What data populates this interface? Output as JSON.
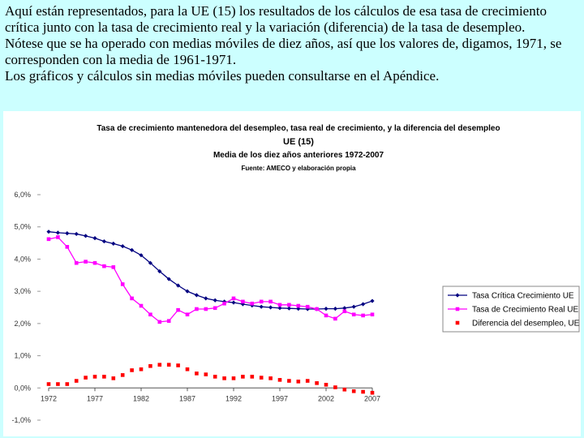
{
  "intro": {
    "p1": "Aquí están representados, para la UE (15) los resultados de los cálculos de esa tasa de crecimiento crítica junto con la tasa de crecimiento real y la variación (diferencia) de la tasa de desempleo.",
    "p2": "Nótese que se ha operado con medias móviles de diez años, así que los valores de, digamos, 1971, se corresponden con la media de 1961-1971.",
    "p3": "Los gráficos y cálculos sin medias móviles pueden consultarse en el Apéndice."
  },
  "colors": {
    "critical": "#000080",
    "real": "#ff00ff",
    "diff": "#ff0000",
    "background": "#ccffff"
  },
  "chart_data": {
    "type": "line",
    "title": "Tasa de crecimiento mantenedora del desempleo, tasa real de crecimiento, y la diferencia del desempleo",
    "subtitle1": "UE (15)",
    "subtitle2": "Media de los diez años anteriores 1972-2007",
    "source": "Fuente: AMECO y elaboración propia",
    "xlabel": "",
    "ylabel": "",
    "xlim": [
      1972,
      2007
    ],
    "ylim": [
      -1.0,
      6.0
    ],
    "y_ticks": [
      "-1,0%",
      "0,0%",
      "1,0%",
      "2,0%",
      "3,0%",
      "4,0%",
      "5,0%",
      "6,0%"
    ],
    "x_ticks": [
      "1972",
      "1977",
      "1982",
      "1987",
      "1992",
      "1997",
      "2002",
      "2007"
    ],
    "grid": false,
    "legend_position": "right",
    "x": [
      1972,
      1973,
      1974,
      1975,
      1976,
      1977,
      1978,
      1979,
      1980,
      1981,
      1982,
      1983,
      1984,
      1985,
      1986,
      1987,
      1988,
      1989,
      1990,
      1991,
      1992,
      1993,
      1994,
      1995,
      1996,
      1997,
      1998,
      1999,
      2000,
      2001,
      2002,
      2003,
      2004,
      2005,
      2006,
      2007
    ],
    "series": [
      {
        "name": "Tasa Crítica Crecimiento UE",
        "marker": "diamond",
        "values": [
          4.85,
          4.82,
          4.8,
          4.78,
          4.72,
          4.65,
          4.55,
          4.48,
          4.4,
          4.28,
          4.12,
          3.88,
          3.62,
          3.38,
          3.18,
          3.0,
          2.88,
          2.78,
          2.72,
          2.68,
          2.65,
          2.6,
          2.56,
          2.52,
          2.5,
          2.48,
          2.47,
          2.46,
          2.45,
          2.45,
          2.46,
          2.46,
          2.48,
          2.52,
          2.6,
          2.7
        ]
      },
      {
        "name": "Tasa de Crecimiento Real UE",
        "marker": "square",
        "values": [
          4.62,
          4.68,
          4.38,
          3.88,
          3.92,
          3.88,
          3.78,
          3.75,
          3.22,
          2.78,
          2.55,
          2.28,
          2.05,
          2.08,
          2.42,
          2.28,
          2.45,
          2.45,
          2.48,
          2.62,
          2.78,
          2.68,
          2.62,
          2.68,
          2.68,
          2.58,
          2.58,
          2.55,
          2.52,
          2.45,
          2.25,
          2.15,
          2.38,
          2.28,
          2.25,
          2.28
        ]
      },
      {
        "name": "Diferencia del desempleo, UE",
        "marker": "square-filled",
        "line": false,
        "values": [
          0.12,
          0.12,
          0.12,
          0.22,
          0.32,
          0.35,
          0.35,
          0.3,
          0.4,
          0.55,
          0.58,
          0.68,
          0.72,
          0.72,
          0.7,
          0.58,
          0.45,
          0.42,
          0.35,
          0.3,
          0.3,
          0.35,
          0.35,
          0.32,
          0.3,
          0.25,
          0.22,
          0.2,
          0.22,
          0.15,
          0.1,
          0.02,
          -0.05,
          -0.1,
          -0.12,
          -0.15
        ]
      }
    ]
  }
}
